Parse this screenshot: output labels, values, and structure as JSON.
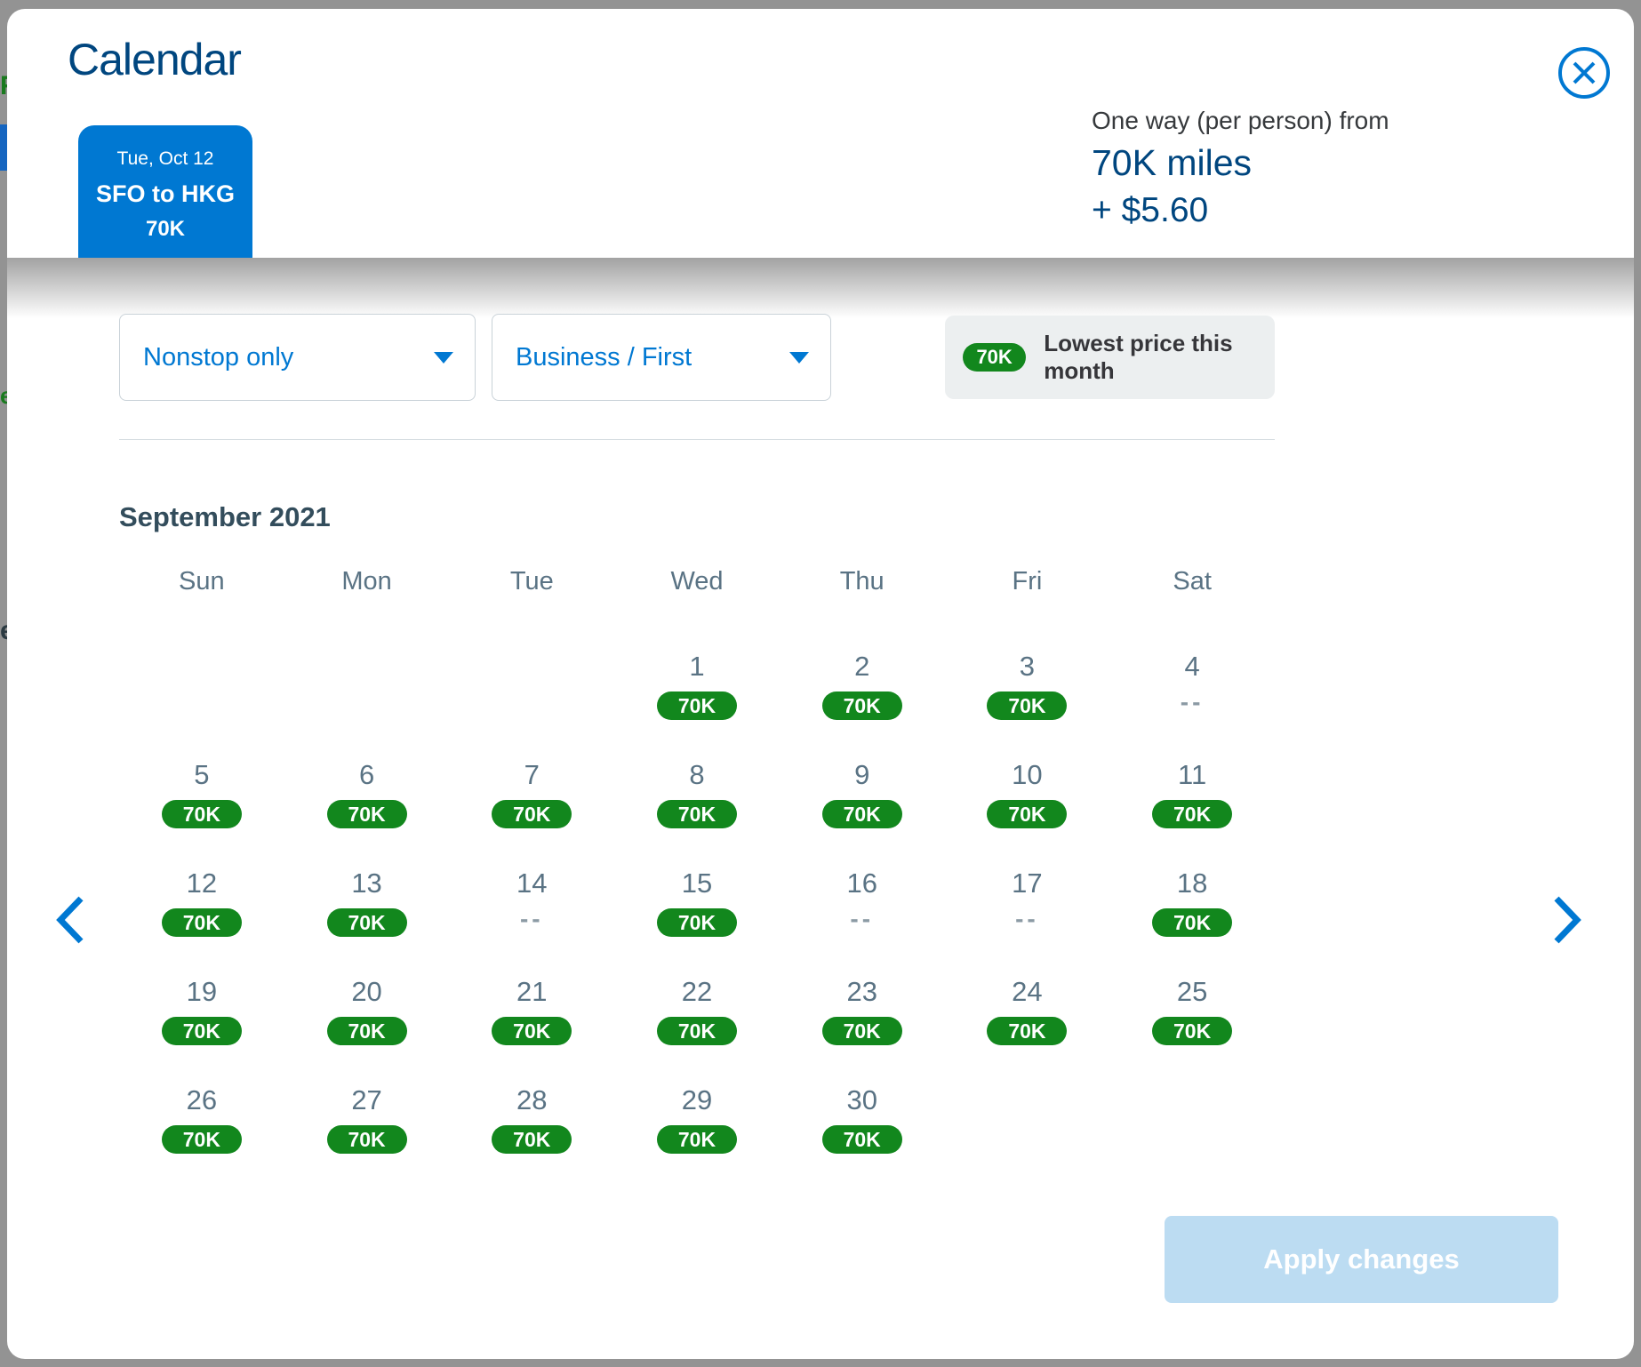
{
  "backdrop": {
    "fragments": [
      "R",
      "e",
      "e"
    ]
  },
  "modal": {
    "title": "Calendar",
    "tab": {
      "date": "Tue, Oct 12",
      "route": "SFO to HKG",
      "price": "70K"
    },
    "price_summary": {
      "label": "One way (per person) from",
      "miles": "70K miles",
      "taxes": "+ $5.60"
    },
    "filters": {
      "stops_value": "Nonstop only",
      "cabin_value": "Business / First"
    },
    "legend": {
      "badge": "70K",
      "label": "Lowest price this month"
    },
    "calendar": {
      "month_heading": "September 2021",
      "weekdays": [
        "Sun",
        "Mon",
        "Tue",
        "Wed",
        "Thu",
        "Fri",
        "Sat"
      ],
      "first_day_col": 3,
      "total_cells": 35,
      "unavailable_marker": "--",
      "days": [
        {
          "date": 1,
          "price": "70K"
        },
        {
          "date": 2,
          "price": "70K"
        },
        {
          "date": 3,
          "price": "70K"
        },
        {
          "date": 4,
          "price": "--"
        },
        {
          "date": 5,
          "price": "70K"
        },
        {
          "date": 6,
          "price": "70K"
        },
        {
          "date": 7,
          "price": "70K"
        },
        {
          "date": 8,
          "price": "70K"
        },
        {
          "date": 9,
          "price": "70K"
        },
        {
          "date": 10,
          "price": "70K"
        },
        {
          "date": 11,
          "price": "70K"
        },
        {
          "date": 12,
          "price": "70K"
        },
        {
          "date": 13,
          "price": "70K"
        },
        {
          "date": 14,
          "price": "--"
        },
        {
          "date": 15,
          "price": "70K"
        },
        {
          "date": 16,
          "price": "--"
        },
        {
          "date": 17,
          "price": "--"
        },
        {
          "date": 18,
          "price": "70K"
        },
        {
          "date": 19,
          "price": "70K"
        },
        {
          "date": 20,
          "price": "70K"
        },
        {
          "date": 21,
          "price": "70K"
        },
        {
          "date": 22,
          "price": "70K"
        },
        {
          "date": 23,
          "price": "70K"
        },
        {
          "date": 24,
          "price": "70K"
        },
        {
          "date": 25,
          "price": "70K"
        },
        {
          "date": 26,
          "price": "70K"
        },
        {
          "date": 27,
          "price": "70K"
        },
        {
          "date": 28,
          "price": "70K"
        },
        {
          "date": 29,
          "price": "70K"
        },
        {
          "date": 30,
          "price": "70K"
        }
      ]
    },
    "apply_label": "Apply changes",
    "colors": {
      "brand_blue": "#0078d2",
      "dark_blue": "#00467f",
      "badge_green": "#12871d",
      "slate_text": "#5a7384",
      "heading_slate": "#334d5c",
      "legend_bg": "#eceff0",
      "apply_disabled_bg": "#bcdcf2",
      "backdrop_gray": "#939393"
    }
  }
}
